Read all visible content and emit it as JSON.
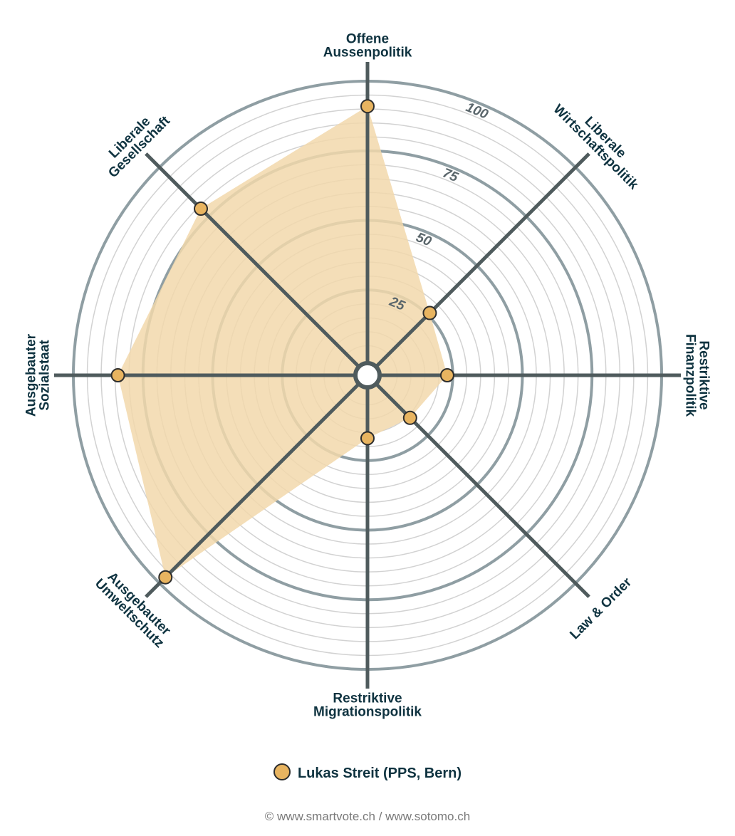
{
  "chart_data": {
    "type": "radar",
    "axes": [
      {
        "label": [
          "Offene",
          "Aussenpolitik"
        ],
        "value": 91
      },
      {
        "label": [
          "Liberale",
          "Wirtschaftspolitik"
        ],
        "value": 26
      },
      {
        "label": [
          "Restriktive",
          "Finanzpolitik"
        ],
        "value": 23
      },
      {
        "label": [
          "Law & Order"
        ],
        "value": 16
      },
      {
        "label": [
          "Restriktive",
          "Migrationspolitik"
        ],
        "value": 17
      },
      {
        "label": [
          "Ausgebauter",
          "Umweltschutz"
        ],
        "value": 97
      },
      {
        "label": [
          "Ausgebauter",
          "Sozialstaat"
        ],
        "value": 84
      },
      {
        "label": [
          "Liberale",
          "Gesellschaft"
        ],
        "value": 79
      }
    ],
    "range": [
      0,
      100
    ],
    "ticks": [
      25,
      50,
      75,
      100
    ],
    "series_name": "Lukas Streit (PPS, Bern)",
    "fill_color": "#f2d8ab",
    "marker_color": "#e8b460",
    "axis_color": "#4f5b5d",
    "ring_color": "#8f9ea3",
    "minor_ring_color": "#d2d2d2"
  },
  "legend": {
    "label": "Lukas Streit (PPS, Bern)"
  },
  "footer": {
    "text": "© www.smartvote.ch / www.sotomo.ch"
  }
}
